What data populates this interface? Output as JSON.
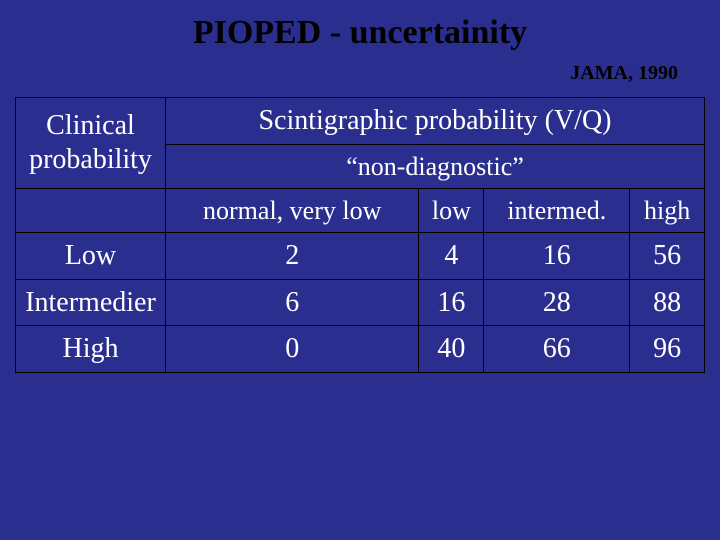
{
  "title": {
    "text": "PIOPED - uncertainity",
    "fontsize": 34
  },
  "subtitle": {
    "text": "JAMA, 1990",
    "fontsize": 20
  },
  "table": {
    "text_color": "#ffffff",
    "border_color": "#000000",
    "fontsize_header": 28,
    "fontsize_cell": 28,
    "row_header_label": "Clinical probability",
    "col_header_label": "Scintigraphic probability (V/Q)",
    "col_subheader_label": "“non-diagnostic”",
    "columns": [
      "normal, very low",
      "low",
      "intermed.",
      "high"
    ],
    "rows": [
      {
        "label": "Low",
        "values": [
          "2",
          "4",
          "16",
          "56"
        ]
      },
      {
        "label": "Intermedier",
        "values": [
          "6",
          "16",
          "28",
          "88"
        ]
      },
      {
        "label": "High",
        "values": [
          "0",
          "40",
          "66",
          "96"
        ]
      }
    ]
  },
  "colors": {
    "background": "#2a2e8f",
    "title": "#000000",
    "subtitle": "#000000"
  }
}
